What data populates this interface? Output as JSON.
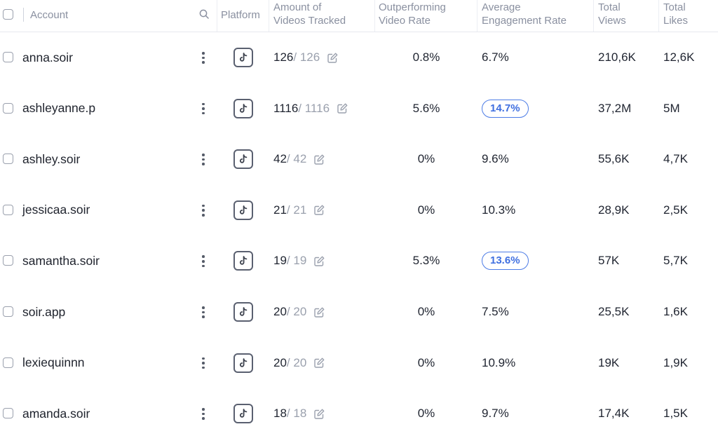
{
  "header": {
    "account_label": "Account",
    "platform_label": "Platform",
    "tracked_label": [
      "Amount of",
      "Videos Tracked"
    ],
    "outperforming_label": [
      "Outperforming",
      "Video Rate"
    ],
    "engagement_label": [
      "Average",
      "Engagement Rate"
    ],
    "views_label": [
      "Total",
      "Views"
    ],
    "likes_label": [
      "Total",
      "Likes"
    ]
  },
  "colors": {
    "badge_accent": "#3f6fe0",
    "header_text": "#8a90a0"
  },
  "icons": {
    "platform": "tiktok-icon",
    "search": "search-icon",
    "edit": "edit-icon",
    "menu": "kebab-menu-icon"
  },
  "rows": [
    {
      "account": "anna.soir",
      "tracked": "126",
      "tracked_total": "/ 126",
      "outperforming": "0.8%",
      "engagement": "6.7%",
      "engagement_highlight": false,
      "views": "210,6K",
      "likes": "12,6K"
    },
    {
      "account": "ashleyanne.p",
      "tracked": "1116",
      "tracked_total": "/ 1116",
      "outperforming": "5.6%",
      "engagement": "14.7%",
      "engagement_highlight": true,
      "views": "37,2M",
      "likes": "5M"
    },
    {
      "account": "ashley.soir",
      "tracked": "42",
      "tracked_total": "/ 42",
      "outperforming": "0%",
      "engagement": "9.6%",
      "engagement_highlight": false,
      "views": "55,6K",
      "likes": "4,7K"
    },
    {
      "account": "jessicaa.soir",
      "tracked": "21",
      "tracked_total": "/ 21",
      "outperforming": "0%",
      "engagement": "10.3%",
      "engagement_highlight": false,
      "views": "28,9K",
      "likes": "2,5K"
    },
    {
      "account": "samantha.soir",
      "tracked": "19",
      "tracked_total": "/ 19",
      "outperforming": "5.3%",
      "engagement": "13.6%",
      "engagement_highlight": true,
      "views": "57K",
      "likes": "5,7K"
    },
    {
      "account": "soir.app",
      "tracked": "20",
      "tracked_total": "/ 20",
      "outperforming": "0%",
      "engagement": "7.5%",
      "engagement_highlight": false,
      "views": "25,5K",
      "likes": "1,6K"
    },
    {
      "account": "lexiequinnn",
      "tracked": "20",
      "tracked_total": "/ 20",
      "outperforming": "0%",
      "engagement": "10.9%",
      "engagement_highlight": false,
      "views": "19K",
      "likes": "1,9K"
    },
    {
      "account": "amanda.soir",
      "tracked": "18",
      "tracked_total": "/ 18",
      "outperforming": "0%",
      "engagement": "9.7%",
      "engagement_highlight": false,
      "views": "17,4K",
      "likes": "1,5K"
    }
  ]
}
